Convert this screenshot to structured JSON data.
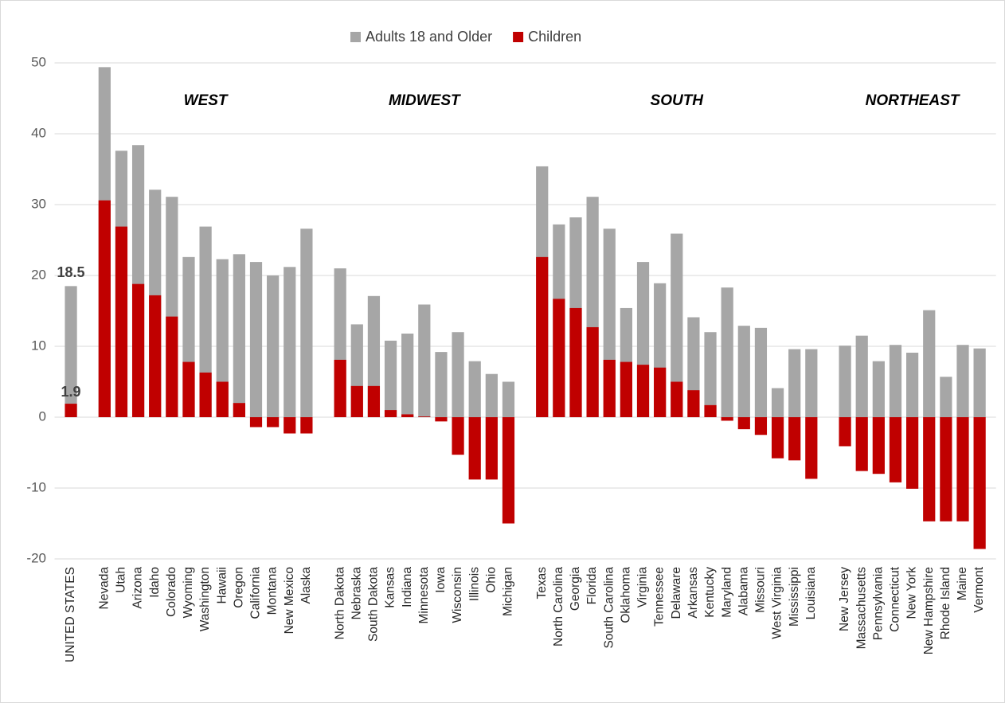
{
  "chart_data": {
    "type": "bar",
    "annotations": [
      "WEST",
      "MIDWEST",
      "SOUTH",
      "NORTHEAST"
    ],
    "categories": [
      "UNITED STATES",
      null,
      "Nevada",
      "Utah",
      "Arizona",
      "Idaho",
      "Colorado",
      "Wyoming",
      "Washington",
      "Hawaii",
      "Oregon",
      "California",
      "Montana",
      "New Mexico",
      "Alaska",
      null,
      "North Dakota",
      "Nebraska",
      "South Dakota",
      "Kansas",
      "Indiana",
      "Minnesota",
      "Iowa",
      "Wisconsin",
      "Illinois",
      "Ohio",
      "Michigan",
      null,
      "Texas",
      "North Carolina",
      "Georgia",
      "Florida",
      "South Carolina",
      "Oklahoma",
      "Virginia",
      "Tennessee",
      "Delaware",
      "Arkansas",
      "Kentucky",
      "Maryland",
      "Alabama",
      "Missouri",
      "West Virginia",
      "Mississippi",
      "Louisiana",
      null,
      "New Jersey",
      "Massachusetts",
      "Pennsylvania",
      "Connecticut",
      "New York",
      "New Hampshire",
      "Rhode Island",
      "Maine",
      "Vermont"
    ],
    "series": [
      {
        "name": "Adults 18 and Older",
        "color": "#a6a6a6",
        "values": [
          18.5,
          null,
          49.4,
          37.6,
          38.4,
          32.1,
          31.1,
          22.6,
          26.9,
          22.3,
          23.0,
          21.9,
          20.0,
          21.2,
          26.6,
          null,
          21.0,
          13.1,
          17.1,
          10.8,
          11.8,
          15.9,
          9.2,
          12.0,
          7.9,
          6.1,
          5.0,
          null,
          35.4,
          27.2,
          28.2,
          31.1,
          26.6,
          15.4,
          21.9,
          18.9,
          25.9,
          14.1,
          12.0,
          18.3,
          12.9,
          12.6,
          4.1,
          9.6,
          9.6,
          null,
          10.1,
          11.5,
          7.9,
          10.2,
          9.1,
          15.1,
          5.7,
          10.2,
          9.7
        ]
      },
      {
        "name": "Children",
        "color": "#c00000",
        "values": [
          1.9,
          null,
          30.6,
          26.9,
          18.8,
          17.2,
          14.2,
          7.8,
          6.3,
          5.0,
          2.0,
          -1.4,
          -1.4,
          -2.3,
          -2.3,
          null,
          8.1,
          4.4,
          4.4,
          1.0,
          0.4,
          0.1,
          -0.6,
          -5.3,
          -8.8,
          -8.8,
          -15.0,
          null,
          22.6,
          16.7,
          15.4,
          12.7,
          8.1,
          7.8,
          7.4,
          7.0,
          5.0,
          3.8,
          1.7,
          -0.5,
          -1.7,
          -2.5,
          -5.8,
          -6.1,
          -8.7,
          null,
          -4.1,
          -7.6,
          -8.0,
          -9.2,
          -10.1,
          -14.7,
          -14.7,
          -14.7,
          -18.6
        ]
      }
    ],
    "ylim": [
      -20,
      50
    ],
    "yticks": [
      -20,
      -10,
      0,
      10,
      20,
      30,
      40,
      50
    ],
    "grid": true,
    "legend": "top"
  }
}
